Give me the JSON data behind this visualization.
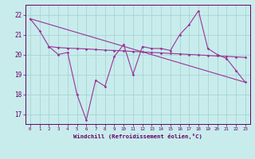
{
  "xlabel": "Windchill (Refroidissement éolien,°C)",
  "bg_color": "#c8ecec",
  "grid_color": "#a8d4d4",
  "line_color": "#993399",
  "text_color": "#660066",
  "ylim": [
    16.5,
    22.5
  ],
  "xlim": [
    -0.5,
    23.5
  ],
  "yticks": [
    17,
    18,
    19,
    20,
    21,
    22
  ],
  "xticks": [
    0,
    1,
    2,
    3,
    4,
    5,
    6,
    7,
    8,
    9,
    10,
    11,
    12,
    13,
    14,
    15,
    16,
    17,
    18,
    19,
    20,
    21,
    22,
    23
  ],
  "line1_x": [
    0,
    1,
    2,
    3,
    4,
    5,
    6,
    7,
    8,
    9,
    10,
    11,
    12,
    13,
    14,
    15,
    16,
    17,
    18,
    19,
    20,
    21,
    22,
    23
  ],
  "line1_y": [
    21.8,
    21.2,
    20.4,
    20.0,
    20.1,
    18.0,
    16.7,
    18.7,
    18.4,
    19.9,
    20.5,
    19.0,
    20.4,
    20.3,
    20.3,
    20.2,
    21.0,
    21.5,
    22.2,
    20.3,
    20.0,
    19.8,
    19.2,
    18.6
  ],
  "line2_x": [
    2,
    3,
    4,
    5,
    6,
    7,
    8,
    9,
    10,
    11,
    12,
    13,
    14,
    15,
    16,
    17,
    18,
    19,
    20,
    21,
    22,
    23
  ],
  "line2_y": [
    20.4,
    20.35,
    20.32,
    20.3,
    20.28,
    20.25,
    20.22,
    20.2,
    20.18,
    20.15,
    20.13,
    20.1,
    20.08,
    20.05,
    20.03,
    20.0,
    19.98,
    19.95,
    19.92,
    19.9,
    19.88,
    19.85
  ],
  "line3_x": [
    0,
    23
  ],
  "line3_y": [
    21.8,
    18.6
  ]
}
